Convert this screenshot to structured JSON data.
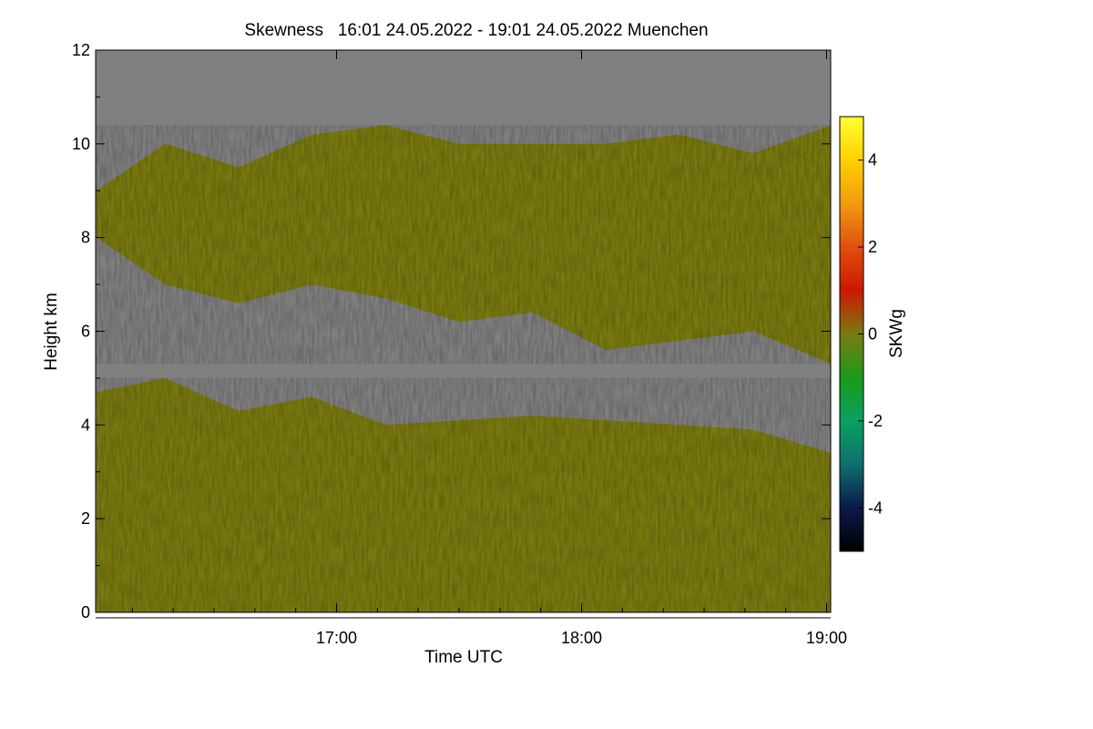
{
  "chart_data": {
    "type": "heatmap",
    "title": "Skewness   16:01 24.05.2022 - 19:01 24.05.2022 Muenchen",
    "xlabel": "Time UTC",
    "ylabel": "Height km",
    "colorbar_label": "SKWg",
    "x_range_hours": [
      16.0167,
      19.0167
    ],
    "ylim": [
      0,
      12
    ],
    "x_ticks": [
      {
        "value": 17.0,
        "label": "17:00"
      },
      {
        "value": 18.0,
        "label": "18:00"
      },
      {
        "value": 19.0,
        "label": "19:00"
      }
    ],
    "y_ticks": [
      {
        "value": 0,
        "label": "0"
      },
      {
        "value": 2,
        "label": "2"
      },
      {
        "value": 4,
        "label": "4"
      },
      {
        "value": 6,
        "label": "6"
      },
      {
        "value": 8,
        "label": "8"
      },
      {
        "value": 10,
        "label": "10"
      },
      {
        "value": 12,
        "label": "12"
      }
    ],
    "colorbar_range": [
      -5,
      5
    ],
    "colorbar_ticks": [
      {
        "value": 4,
        "label": "4"
      },
      {
        "value": 2,
        "label": "2"
      },
      {
        "value": 0,
        "label": "0"
      },
      {
        "value": -2,
        "label": "-2"
      },
      {
        "value": -4,
        "label": "-4"
      }
    ],
    "colormap": [
      {
        "value": -5,
        "color": "#000000"
      },
      {
        "value": -4,
        "color": "#0a1a4a"
      },
      {
        "value": -3,
        "color": "#0f6f6f"
      },
      {
        "value": -2,
        "color": "#0aa060"
      },
      {
        "value": -1,
        "color": "#1a9a1a"
      },
      {
        "value": 0,
        "color": "#7a7a10"
      },
      {
        "value": 1,
        "color": "#cc1800"
      },
      {
        "value": 2,
        "color": "#e05010"
      },
      {
        "value": 3,
        "color": "#f29a10"
      },
      {
        "value": 4,
        "color": "#ffd000"
      },
      {
        "value": 5,
        "color": "#ffff30"
      }
    ],
    "no_data_color": "#808080",
    "layers": [
      {
        "name": "upper-cloud-layer",
        "dominant_skewness": 0,
        "time_hours": [
          16.02,
          16.3,
          16.6,
          16.9,
          17.2,
          17.5,
          17.8,
          18.1,
          18.4,
          18.7,
          19.02
        ],
        "top_km": [
          9.0,
          10.0,
          9.5,
          10.2,
          10.4,
          10.0,
          10.0,
          10.0,
          10.2,
          9.8,
          10.4
        ],
        "base_km": [
          8.0,
          7.0,
          6.6,
          7.0,
          6.7,
          6.2,
          6.4,
          5.6,
          5.8,
          6.0,
          5.3
        ]
      },
      {
        "name": "boundary-layer",
        "dominant_skewness": 0.5,
        "time_hours": [
          16.02,
          16.3,
          16.6,
          16.9,
          17.2,
          17.5,
          17.8,
          18.1,
          18.4,
          18.7,
          19.02
        ],
        "top_km": [
          4.7,
          5.0,
          4.3,
          4.6,
          4.0,
          4.1,
          4.2,
          4.1,
          4.0,
          3.9,
          3.4
        ],
        "base_km": [
          0,
          0,
          0,
          0,
          0,
          0,
          0,
          0,
          0,
          0,
          0
        ]
      }
    ]
  }
}
